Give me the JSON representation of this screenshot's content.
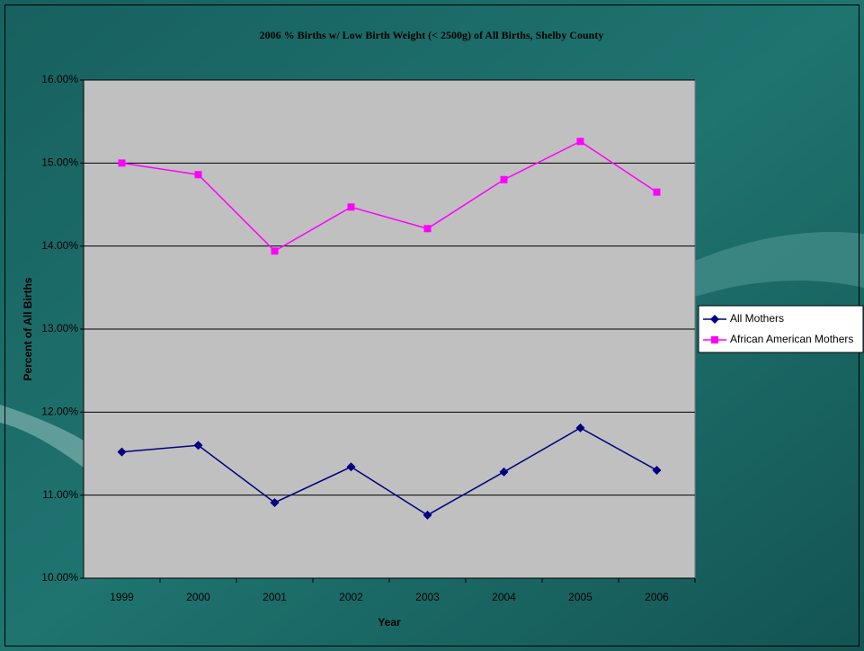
{
  "chart_data": {
    "type": "line",
    "title": "2006 % Births w/ Low Birth Weight (< 2500g) of All Births, Shelby County",
    "x_label": "Year",
    "y_label": "Percent of All Births",
    "categories": [
      "1999",
      "2000",
      "2001",
      "2002",
      "2003",
      "2004",
      "2005",
      "2006"
    ],
    "series": [
      {
        "name": "All Mothers",
        "color": "#000080",
        "marker": "diamond",
        "values": [
          11.52,
          11.6,
          10.91,
          11.34,
          10.76,
          11.28,
          11.81,
          11.3
        ]
      },
      {
        "name": "African American Mothers",
        "color": "#ff00ff",
        "marker": "square",
        "values": [
          15.0,
          14.86,
          13.94,
          14.47,
          14.21,
          14.8,
          15.26,
          14.65
        ]
      }
    ],
    "ylim": [
      10,
      16
    ],
    "yticks": [
      {
        "value": 10,
        "label": "10.00%"
      },
      {
        "value": 11,
        "label": "11.00%"
      },
      {
        "value": 12,
        "label": "12.00%"
      },
      {
        "value": 13,
        "label": "13.00%"
      },
      {
        "value": 14,
        "label": "14.00%"
      },
      {
        "value": 15,
        "label": "15.00%"
      },
      {
        "value": 16,
        "label": "16.00%"
      }
    ],
    "grid": true,
    "legend": "right"
  }
}
